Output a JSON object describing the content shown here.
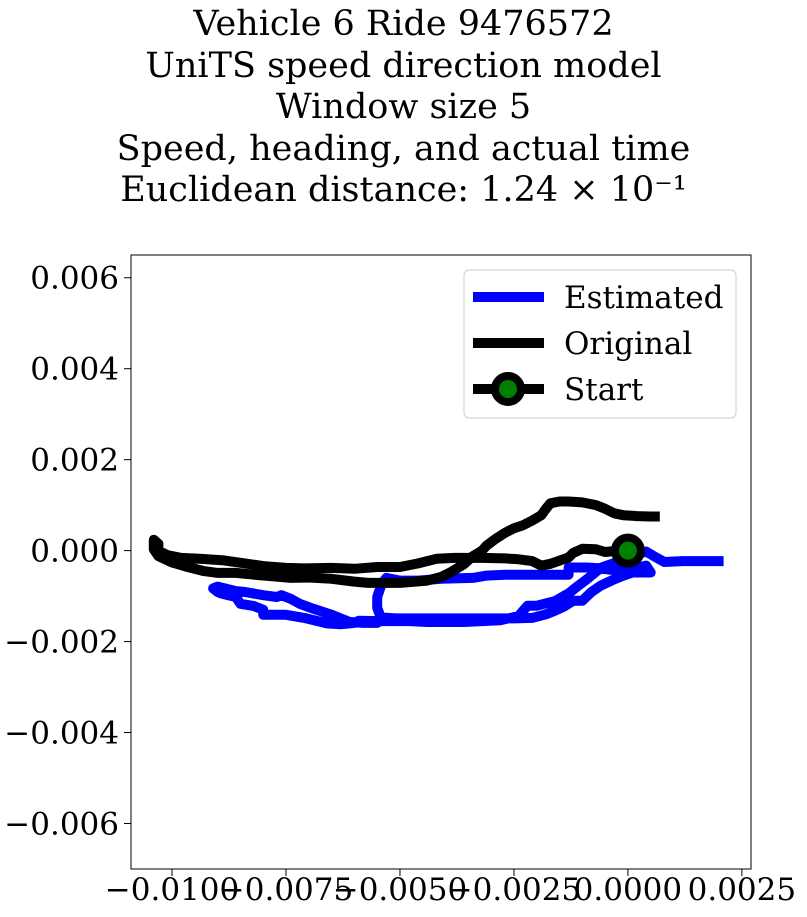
{
  "chart_data": {
    "type": "line",
    "title_lines": [
      "Vehicle 6 Ride 9476572",
      "UniTS speed direction model",
      "Window size 5",
      "Speed, heading, and actual time",
      "Euclidean distance: 1.24 × 10⁻¹"
    ],
    "xlabel": "",
    "ylabel": "",
    "xlim": [
      -0.0109,
      0.0027
    ],
    "ylim": [
      -0.007,
      0.0065
    ],
    "x_ticks": [
      -0.01,
      -0.0075,
      -0.005,
      -0.0025,
      0.0,
      0.0025
    ],
    "x_tick_labels": [
      "−0.0100",
      "−0.0075",
      "−0.0050",
      "−0.0025",
      "0.0000",
      "0.0025"
    ],
    "y_ticks": [
      0.006,
      0.004,
      0.002,
      0.0,
      -0.002,
      -0.004,
      -0.006
    ],
    "y_tick_labels": [
      "0.006",
      "0.004",
      "0.002",
      "0.000",
      "−0.002",
      "−0.004",
      "−0.006"
    ],
    "legend_position": "top-right",
    "series": [
      {
        "name": "Estimated",
        "color": "#0000ff",
        "points": [
          [
            0.0021,
            -0.00023
          ],
          [
            0.0013,
            -0.00023
          ],
          [
            0.0012,
            -0.00023
          ],
          [
            0.0008,
            -0.00025
          ],
          [
            0.0006,
            -0.00014
          ],
          [
            0.0004,
            -2e-05
          ],
          [
            0.0001,
            -0.00012
          ],
          [
            -0.0002,
            -0.00024
          ],
          [
            -0.0006,
            -0.00038
          ],
          [
            -0.0009,
            -0.00063
          ],
          [
            -0.0011,
            -0.00078
          ],
          [
            -0.0013,
            -0.00094
          ],
          [
            -0.0016,
            -0.00111
          ],
          [
            -0.002,
            -0.00121
          ],
          [
            -0.0022,
            -0.00121
          ],
          [
            -0.0024,
            -0.00144
          ],
          [
            -0.0028,
            -0.00153
          ],
          [
            -0.0032,
            -0.00155
          ],
          [
            -0.0036,
            -0.00157
          ],
          [
            -0.0044,
            -0.00157
          ],
          [
            -0.0048,
            -0.00155
          ],
          [
            -0.0055,
            -0.00155
          ],
          [
            -0.0059,
            -0.00154
          ],
          [
            -0.006,
            -0.00159
          ],
          [
            -0.0063,
            -0.00162
          ],
          [
            -0.0066,
            -0.0016
          ],
          [
            -0.0071,
            -0.00148
          ],
          [
            -0.0075,
            -0.00141
          ],
          [
            -0.008,
            -0.00141
          ],
          [
            -0.008,
            -0.0013
          ],
          [
            -0.0082,
            -0.00122
          ],
          [
            -0.0085,
            -0.00117
          ],
          [
            -0.0086,
            -0.00102
          ],
          [
            -0.0089,
            -0.00095
          ],
          [
            -0.009,
            -0.00091
          ],
          [
            -0.0091,
            -0.00083
          ],
          [
            -0.009,
            -0.00079
          ],
          [
            -0.0086,
            -0.00089
          ],
          [
            -0.0084,
            -0.00091
          ],
          [
            -0.008,
            -0.00098
          ],
          [
            -0.0077,
            -0.00102
          ],
          [
            -0.0076,
            -0.00098
          ],
          [
            -0.0074,
            -0.00106
          ],
          [
            -0.0072,
            -0.00117
          ],
          [
            -0.0069,
            -0.00128
          ],
          [
            -0.0065,
            -0.00141
          ],
          [
            -0.0061,
            -0.00157
          ],
          [
            -0.0058,
            -0.00159
          ],
          [
            -0.0055,
            -0.00159
          ],
          [
            -0.0054,
            -0.00152
          ],
          [
            -0.0055,
            -0.00126
          ],
          [
            -0.0055,
            -0.00102
          ],
          [
            -0.0054,
            -0.00073
          ],
          [
            -0.0053,
            -0.0006
          ],
          [
            -0.005,
            -0.00066
          ],
          [
            -0.0046,
            -0.00066
          ],
          [
            -0.0041,
            -0.00062
          ],
          [
            -0.0034,
            -0.0006
          ],
          [
            -0.0031,
            -0.00055
          ],
          [
            -0.0027,
            -0.00053
          ],
          [
            -0.0013,
            -0.00053
          ],
          [
            -0.0013,
            -0.00037
          ],
          [
            -0.0009,
            -0.00037
          ],
          [
            -0.0006,
            -0.00039
          ],
          [
            -0.0004,
            -0.00042
          ],
          [
            -0.0002,
            -0.00042
          ],
          [
            0.0,
            -0.00042
          ],
          [
            0.0002,
            -0.00037
          ],
          [
            0.0004,
            -0.00033
          ],
          [
            0.0005,
            -0.00048
          ],
          [
            0.0001,
            -0.00048
          ],
          [
            -0.0001,
            -0.00055
          ],
          [
            -0.0003,
            -0.00063
          ],
          [
            -0.0006,
            -0.00077
          ],
          [
            -0.0008,
            -0.00091
          ],
          [
            -0.001,
            -0.0011
          ],
          [
            -0.0012,
            -0.0011
          ],
          [
            -0.0014,
            -0.00123
          ],
          [
            -0.0016,
            -0.00132
          ],
          [
            -0.0018,
            -0.0014
          ],
          [
            -0.0021,
            -0.00148
          ],
          [
            -0.0025,
            -0.00149
          ],
          [
            -0.003,
            -0.00149
          ],
          [
            -0.0036,
            -0.00149
          ],
          [
            -0.0049,
            -0.00149
          ],
          [
            -0.0051,
            -0.00149
          ],
          [
            -0.0054,
            -0.00147
          ]
        ]
      },
      {
        "name": "Original",
        "color": "#000000",
        "points": [
          [
            0.0007,
            0.00075
          ],
          [
            0.0005,
            0.00075
          ],
          [
            0.0002,
            0.00076
          ],
          [
            -0.0001,
            0.00078
          ],
          [
            -0.0003,
            0.00082
          ],
          [
            -0.0005,
            0.00092
          ],
          [
            -0.0007,
            0.001
          ],
          [
            -0.001,
            0.00106
          ],
          [
            -0.0013,
            0.00108
          ],
          [
            -0.0015,
            0.00108
          ],
          [
            -0.0017,
            0.00104
          ],
          [
            -0.0018,
            0.00092
          ],
          [
            -0.0019,
            0.00078
          ],
          [
            -0.0021,
            0.00066
          ],
          [
            -0.0023,
            0.00056
          ],
          [
            -0.0025,
            0.00049
          ],
          [
            -0.0027,
            0.00039
          ],
          [
            -0.0029,
            0.00026
          ],
          [
            -0.0031,
            0.00011
          ],
          [
            -0.0032,
            0.0
          ],
          [
            -0.0034,
            -0.00012
          ],
          [
            -0.0036,
            -0.0003
          ],
          [
            -0.0039,
            -0.00048
          ],
          [
            -0.0041,
            -0.00058
          ],
          [
            -0.0044,
            -0.00066
          ],
          [
            -0.005,
            -0.00071
          ],
          [
            -0.0053,
            -0.00071
          ],
          [
            -0.0057,
            -0.00071
          ],
          [
            -0.006,
            -0.00068
          ],
          [
            -0.0065,
            -0.00062
          ],
          [
            -0.007,
            -0.00059
          ],
          [
            -0.0074,
            -0.0006
          ],
          [
            -0.0077,
            -0.00057
          ],
          [
            -0.0082,
            -0.00053
          ],
          [
            -0.0086,
            -0.00049
          ],
          [
            -0.009,
            -0.00049
          ],
          [
            -0.0093,
            -0.00045
          ],
          [
            -0.0097,
            -0.00035
          ],
          [
            -0.01,
            -0.00026
          ],
          [
            -0.0103,
            -0.00012
          ],
          [
            -0.0104,
            3e-05
          ],
          [
            -0.0104,
            0.00011
          ],
          [
            -0.0104,
            0.00024
          ],
          [
            -0.0103,
            0.00015
          ],
          [
            -0.0103,
            0.0
          ],
          [
            -0.0101,
            -0.0001
          ],
          [
            -0.0098,
            -0.00016
          ],
          [
            -0.0094,
            -0.00018
          ],
          [
            -0.0089,
            -0.00021
          ],
          [
            -0.0084,
            -0.00028
          ],
          [
            -0.008,
            -0.00034
          ],
          [
            -0.0075,
            -0.00038
          ],
          [
            -0.0071,
            -0.00039
          ],
          [
            -0.0065,
            -0.00038
          ],
          [
            -0.006,
            -0.0004
          ],
          [
            -0.0055,
            -0.00036
          ],
          [
            -0.005,
            -0.00036
          ],
          [
            -0.0046,
            -0.00028
          ],
          [
            -0.0042,
            -0.00018
          ],
          [
            -0.0038,
            -0.00016
          ],
          [
            -0.0032,
            -0.00016
          ],
          [
            -0.0027,
            -0.00017
          ],
          [
            -0.0024,
            -0.00019
          ],
          [
            -0.0021,
            -0.00023
          ],
          [
            -0.0019,
            -0.00033
          ],
          [
            -0.0017,
            -0.00029
          ],
          [
            -0.0015,
            -0.00022
          ],
          [
            -0.0013,
            -0.00015
          ],
          [
            -0.0012,
            -5e-05
          ],
          [
            -0.001,
            4e-05
          ],
          [
            -0.0007,
            3e-05
          ],
          [
            -0.0005,
            -3e-05
          ],
          [
            -0.0003,
            -1e-05
          ],
          [
            0.0,
            -1e-05
          ]
        ]
      }
    ],
    "start_marker": {
      "name": "Start",
      "x": 0.0,
      "y": 0.0,
      "edge_color": "#000000",
      "face_color": "#008000"
    }
  }
}
